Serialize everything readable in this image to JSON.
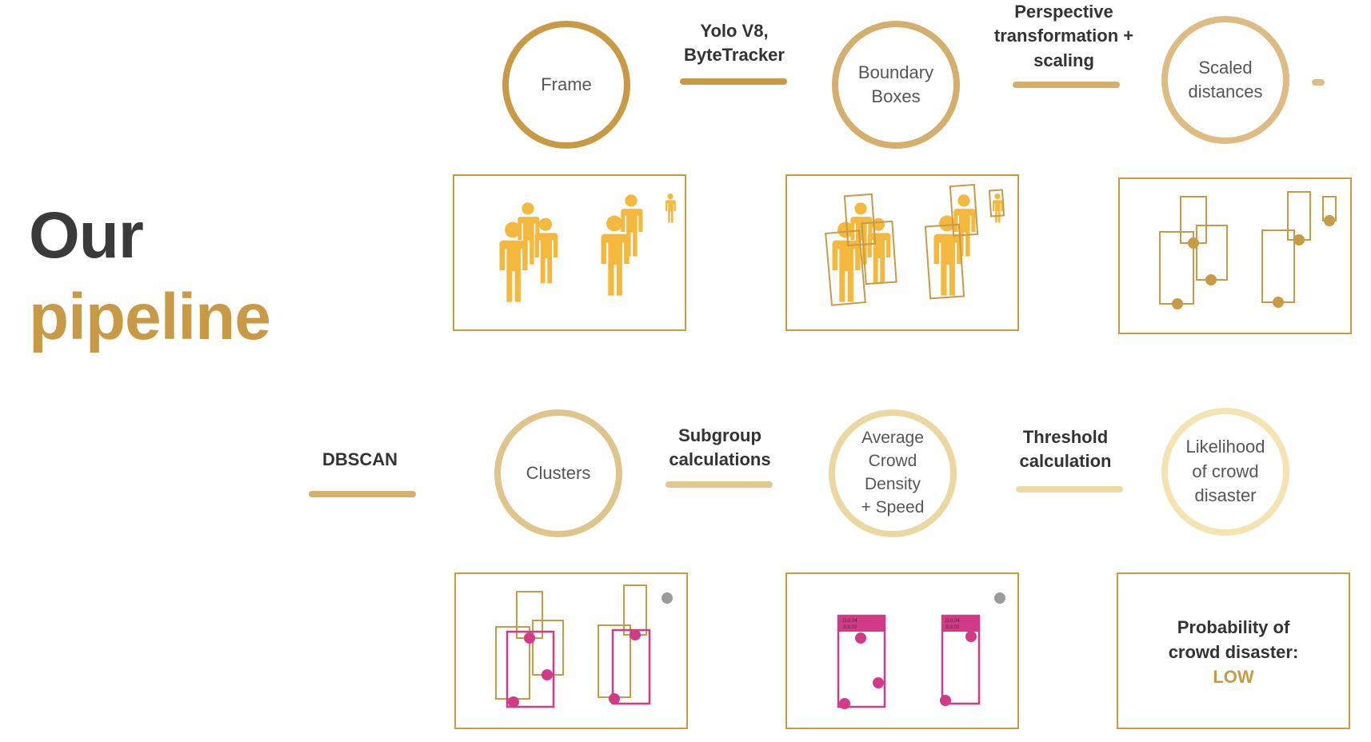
{
  "title": {
    "line1": "Our",
    "line2": "pipeline"
  },
  "circles": {
    "frame": "Frame",
    "boundary_boxes": [
      "Boundary",
      "Boxes"
    ],
    "scaled_distances": [
      "Scaled",
      "distances"
    ],
    "clusters": "Clusters",
    "avg_density": [
      "Average",
      "Crowd Density",
      "+ Speed"
    ],
    "likelihood": [
      "Likelihood",
      "of crowd",
      "disaster"
    ]
  },
  "steps": {
    "yolo": [
      "Yolo V8,",
      "ByteTracker"
    ],
    "perspective": [
      "Perspective",
      "transformation +",
      "scaling"
    ],
    "dbscan": "DBSCAN",
    "subgroup": [
      "Subgroup",
      "calculations"
    ],
    "threshold": [
      "Threshold",
      "calculation"
    ]
  },
  "result": {
    "line1": "Probability of",
    "line2": "crowd disaster:",
    "level": "LOW"
  },
  "panel_text": {
    "density_tag": "D:0.04",
    "speed_tag": "S:0.02"
  },
  "colors": {
    "gold": "#c99a45",
    "person": "#f4b83e",
    "magenta": "#d23a87",
    "gray_dot": "#9b9b9b",
    "text_dark": "#333333"
  }
}
